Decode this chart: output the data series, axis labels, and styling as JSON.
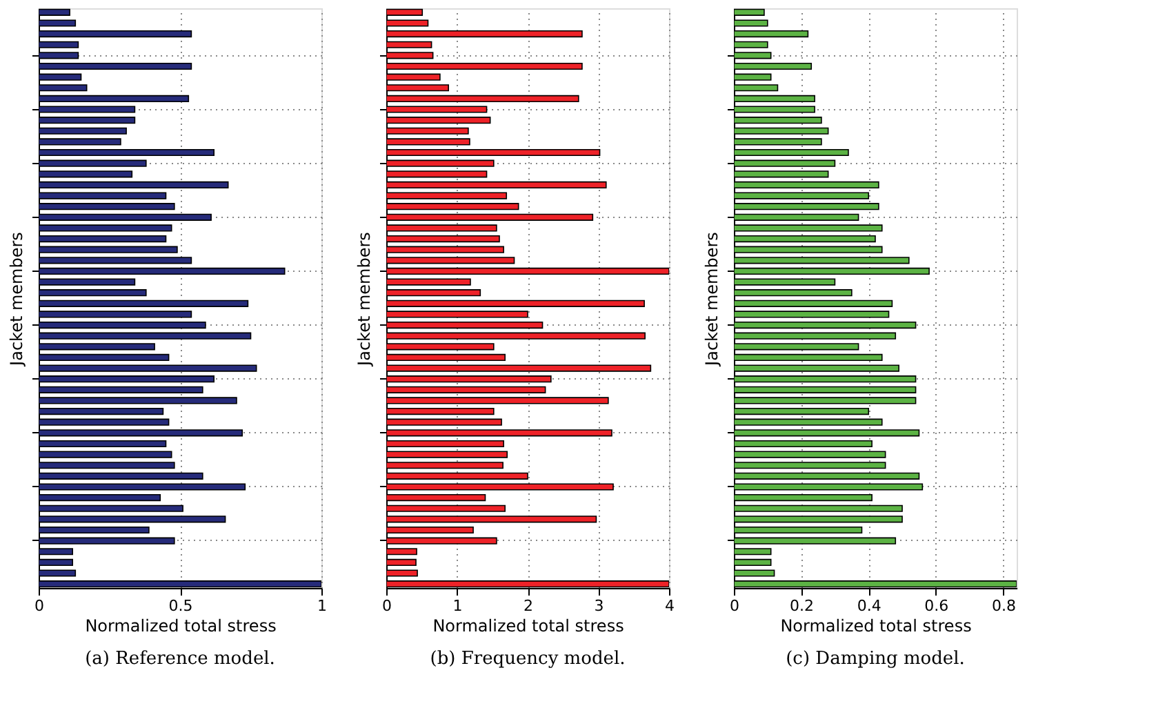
{
  "chart_data": [
    {
      "type": "bar",
      "orientation": "horizontal",
      "title": "(a) Reference model.",
      "xlabel": "Normalized total stress",
      "ylabel": "Jacket members",
      "color": "#262b7a",
      "xlim": [
        0,
        1
      ],
      "xticks": [
        0,
        0.5,
        1
      ],
      "grid": true,
      "tick_labels": "x",
      "categories": [
        null,
        null,
        null,
        null,
        null,
        null,
        null,
        null,
        null,
        null,
        null,
        null,
        null,
        null,
        null,
        null,
        null,
        null,
        null,
        null,
        null,
        null,
        null,
        null,
        null,
        null,
        null,
        null,
        null,
        null,
        null,
        null,
        null,
        null,
        null,
        null,
        null,
        null,
        null,
        null,
        null,
        null,
        null,
        null,
        null,
        null,
        null,
        null,
        null,
        null,
        null,
        null,
        null,
        null
      ],
      "values": [
        0.11,
        0.13,
        0.54,
        0.14,
        0.14,
        0.54,
        0.15,
        0.17,
        0.53,
        0.34,
        0.34,
        0.31,
        0.29,
        0.62,
        0.38,
        0.33,
        0.67,
        0.45,
        0.48,
        0.61,
        0.47,
        0.45,
        0.49,
        0.54,
        0.87,
        0.34,
        0.38,
        0.74,
        0.54,
        0.59,
        0.75,
        0.41,
        0.46,
        0.77,
        0.62,
        0.58,
        0.7,
        0.44,
        0.46,
        0.72,
        0.45,
        0.47,
        0.48,
        0.58,
        0.73,
        0.43,
        0.51,
        0.66,
        0.39,
        0.48,
        0.12,
        0.12,
        0.13,
        1.0
      ]
    },
    {
      "type": "bar",
      "orientation": "horizontal",
      "title": "(b) Frequency model.",
      "xlabel": "Normalized total stress",
      "ylabel": "Jacket members",
      "color": "#ee2228",
      "xlim": [
        0,
        4
      ],
      "xticks": [
        0,
        1,
        2,
        3,
        4
      ],
      "grid": true,
      "tick_labels": "x",
      "categories": [
        null,
        null,
        null,
        null,
        null,
        null,
        null,
        null,
        null,
        null,
        null,
        null,
        null,
        null,
        null,
        null,
        null,
        null,
        null,
        null,
        null,
        null,
        null,
        null,
        null,
        null,
        null,
        null,
        null,
        null,
        null,
        null,
        null,
        null,
        null,
        null,
        null,
        null,
        null,
        null,
        null,
        null,
        null,
        null,
        null,
        null,
        null,
        null,
        null,
        null,
        null,
        null,
        null,
        null
      ],
      "values": [
        0.51,
        0.59,
        2.77,
        0.64,
        0.66,
        2.77,
        0.76,
        0.88,
        2.72,
        1.42,
        1.47,
        1.16,
        1.18,
        3.02,
        1.52,
        1.42,
        3.11,
        1.7,
        1.87,
        2.92,
        1.56,
        1.6,
        1.66,
        1.81,
        4.0,
        1.19,
        1.33,
        3.65,
        2.0,
        2.21,
        3.66,
        1.52,
        1.68,
        3.74,
        2.33,
        2.25,
        3.14,
        1.52,
        1.63,
        3.19,
        1.66,
        1.71,
        1.65,
        2.0,
        3.21,
        1.4,
        1.68,
        2.97,
        1.23,
        1.56,
        0.43,
        0.42,
        0.44,
        4.0
      ]
    },
    {
      "type": "bar",
      "orientation": "horizontal",
      "title": "(c) Damping model.",
      "xlabel": "Normalized total stress",
      "ylabel": "Jacket members",
      "color": "#5cb344",
      "xlim": [
        0,
        0.84
      ],
      "xticks": [
        0,
        0.2,
        0.4,
        0.6,
        0.8
      ],
      "grid": true,
      "tick_labels": "x",
      "categories": [
        null,
        null,
        null,
        null,
        null,
        null,
        null,
        null,
        null,
        null,
        null,
        null,
        null,
        null,
        null,
        null,
        null,
        null,
        null,
        null,
        null,
        null,
        null,
        null,
        null,
        null,
        null,
        null,
        null,
        null,
        null,
        null,
        null,
        null,
        null,
        null,
        null,
        null,
        null,
        null,
        null,
        null,
        null,
        null,
        null,
        null,
        null,
        null,
        null,
        null,
        null,
        null,
        null,
        null
      ],
      "values": [
        0.09,
        0.1,
        0.22,
        0.1,
        0.11,
        0.23,
        0.11,
        0.13,
        0.24,
        0.24,
        0.26,
        0.28,
        0.26,
        0.34,
        0.3,
        0.28,
        0.43,
        0.4,
        0.43,
        0.37,
        0.44,
        0.42,
        0.44,
        0.52,
        0.58,
        0.3,
        0.35,
        0.47,
        0.46,
        0.54,
        0.48,
        0.37,
        0.44,
        0.49,
        0.54,
        0.54,
        0.54,
        0.4,
        0.44,
        0.55,
        0.41,
        0.45,
        0.45,
        0.55,
        0.56,
        0.41,
        0.5,
        0.5,
        0.38,
        0.48,
        0.11,
        0.11,
        0.12,
        0.84
      ]
    }
  ]
}
